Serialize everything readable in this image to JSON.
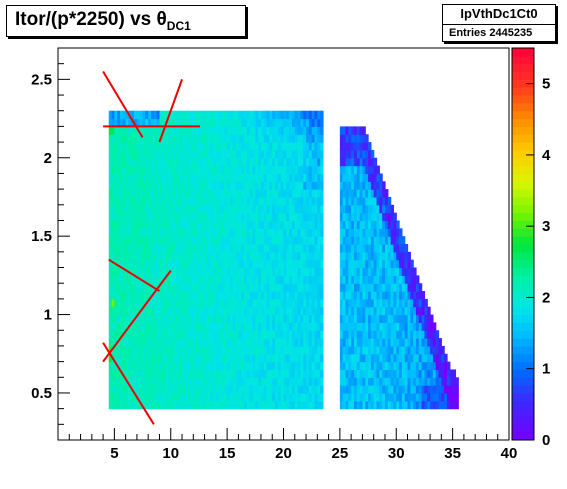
{
  "title": {
    "main": "Itor/(p*2250) vs θ",
    "sub": "DC1"
  },
  "stats": {
    "name": "IpVthDc1Ct0",
    "entries_label": "Entries",
    "entries_value": "2445235"
  },
  "chart_data": {
    "type": "heatmap",
    "x_axis": {
      "range": [
        0,
        40
      ],
      "ticks": [
        5,
        10,
        15,
        20,
        25,
        30,
        35,
        40
      ],
      "tick_labels": [
        "5",
        "10",
        "15",
        "20",
        "25",
        "30",
        "35",
        "40"
      ]
    },
    "y_axis": {
      "range": [
        0.2,
        2.7
      ],
      "ticks": [
        0.5,
        1,
        1.5,
        2,
        2.5
      ],
      "tick_labels": [
        "0.5",
        "1",
        "1.5",
        "2",
        "2.5"
      ]
    },
    "z_axis": {
      "range": [
        0,
        5.5
      ],
      "ticks": [
        0,
        1,
        2,
        3,
        4,
        5
      ],
      "tick_labels": [
        "0",
        "1",
        "2",
        "3",
        "4",
        "5"
      ]
    },
    "regions": [
      {
        "x_min": 4.5,
        "x_max": 23.5,
        "y_min": 0.4,
        "y_max": 2.3,
        "typical_z": 2.0
      },
      {
        "x_min": 25.0,
        "x_max": 35.5,
        "y_min": 0.4,
        "y_max": 2.2,
        "typical_z": 1.5
      }
    ],
    "overlay_lines": [
      {
        "x1": 4.0,
        "y1": 2.55,
        "x2": 7.5,
        "y2": 2.13
      },
      {
        "x1": 11.0,
        "y1": 2.5,
        "x2": 9.0,
        "y2": 2.1
      },
      {
        "x1": 4.0,
        "y1": 2.2,
        "x2": 12.6,
        "y2": 2.2
      },
      {
        "x1": 4.5,
        "y1": 1.35,
        "x2": 9.0,
        "y2": 1.15
      },
      {
        "x1": 10.0,
        "y1": 1.28,
        "x2": 4.0,
        "y2": 0.7
      },
      {
        "x1": 4.0,
        "y1": 0.82,
        "x2": 8.5,
        "y2": 0.3
      }
    ]
  }
}
